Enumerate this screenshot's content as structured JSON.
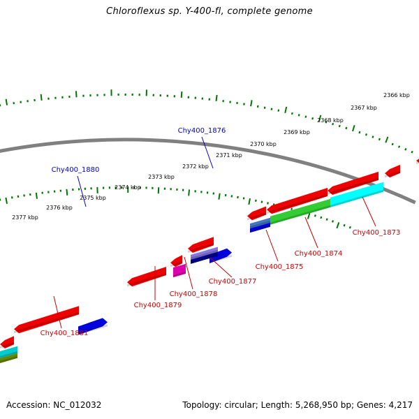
{
  "title": "Chloroflexus sp. Y-400-fl, complete genome",
  "footer": {
    "accession": "Accession: NC_012032",
    "topology": "Topology: circular; Length: 5,268,950 bp; Genes: 4,217"
  },
  "colors": {
    "backbone": "#808080",
    "tick": "#007700",
    "forward_label": "#0000cc",
    "reverse_label": "#cc0000"
  },
  "scale_labels": [
    "2366 kbp",
    "2367 kbp",
    "2368 kbp",
    "2369 kbp",
    "2370 kbp",
    "2371 kbp",
    "2372 kbp",
    "2373 kbp",
    "2374 kbp",
    "2375 kbp",
    "2376 kbp",
    "2377 kbp"
  ],
  "forward_genes": [
    {
      "label": "Chy400_1880",
      "color": "#0000dd"
    },
    {
      "label": "Chy400_1876",
      "color": "#0000dd"
    }
  ],
  "reverse_genes": [
    {
      "label": "Chy400_1881",
      "color": "#ee0000"
    },
    {
      "label": "Chy400_1879",
      "color": "#ee0000"
    },
    {
      "label": "Chy400_1878",
      "color": "#ee0000"
    },
    {
      "label": "Chy400_1877",
      "color": "#ee0000"
    },
    {
      "label": "Chy400_1875",
      "color": "#ee0000"
    },
    {
      "label": "Chy400_1874",
      "color": "#ee0000"
    },
    {
      "label": "Chy400_1873",
      "color": "#ee0000"
    }
  ]
}
